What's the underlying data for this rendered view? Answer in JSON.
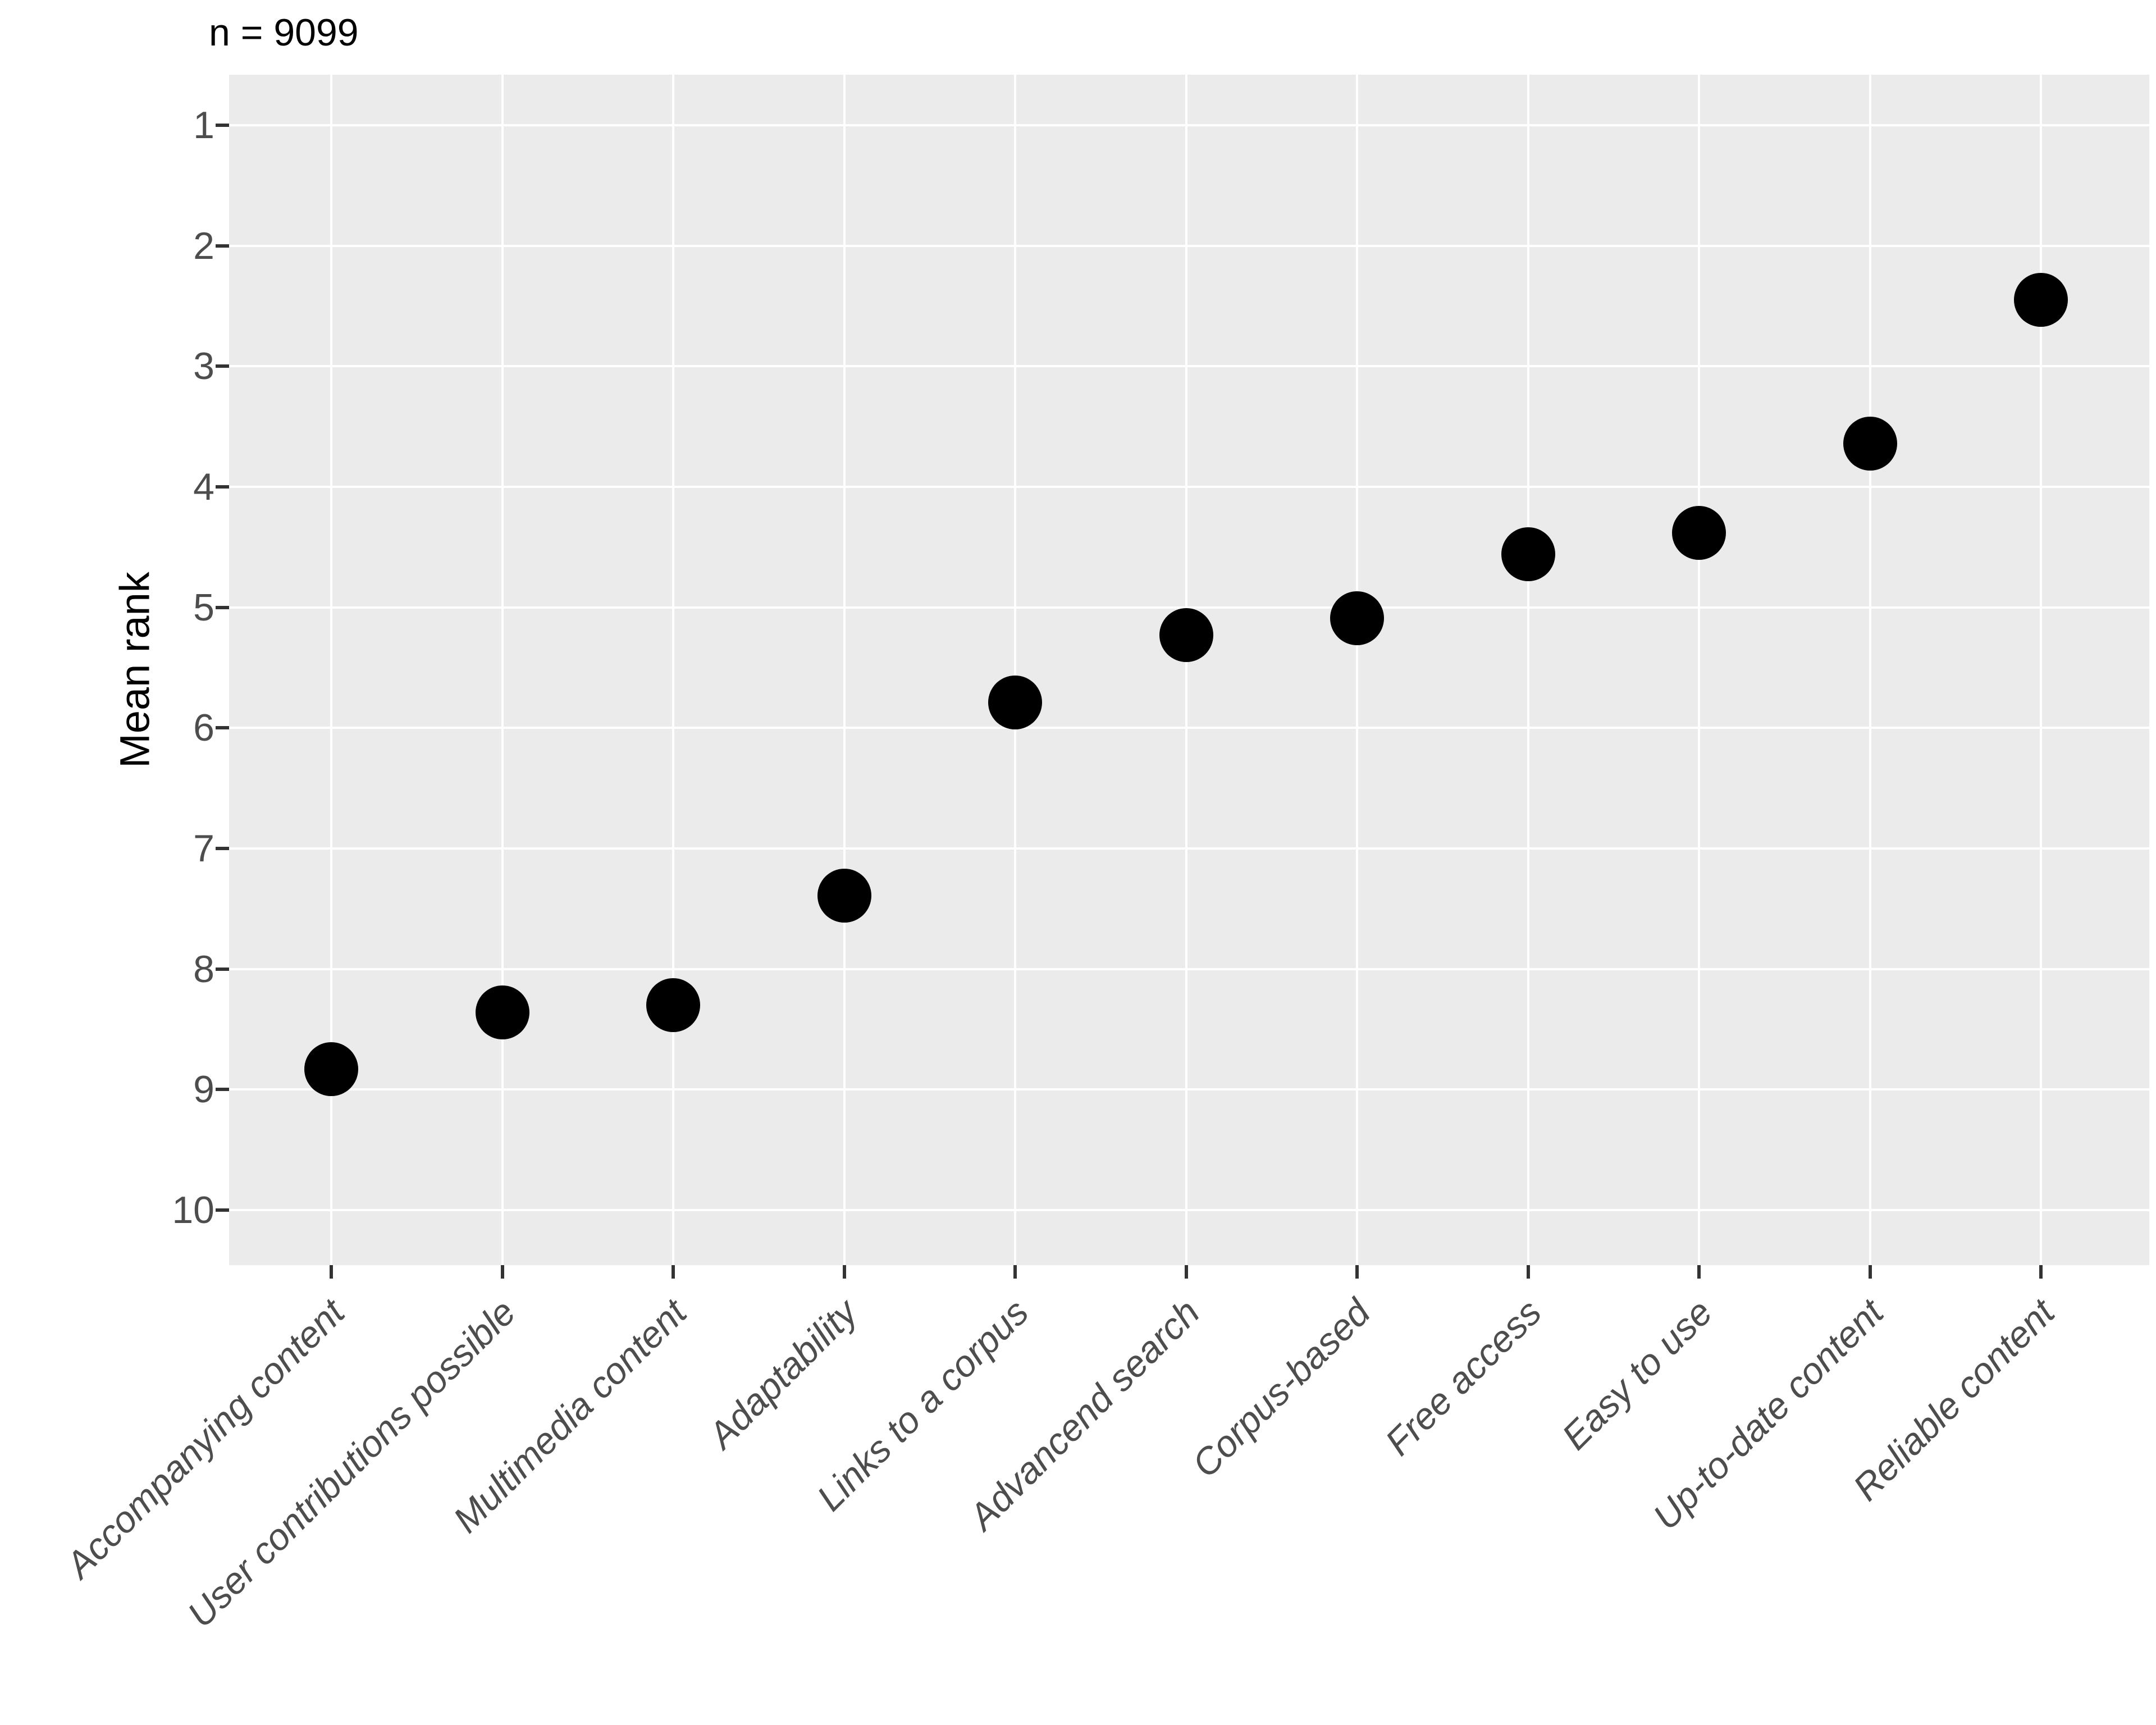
{
  "chart_data": {
    "type": "scatter",
    "title": "n = 9099",
    "xlabel": "",
    "ylabel": "Mean rank",
    "categories": [
      "Accompanying content",
      "User contributions possible",
      "Multimedia content",
      "Adaptability",
      "Links to a corpus",
      "Advancend search",
      "Corpus-based",
      "Free access",
      "Easy to use",
      "Up-to-date content",
      "Reliable content"
    ],
    "values": [
      8.83,
      8.36,
      8.3,
      7.39,
      5.79,
      5.23,
      5.09,
      4.56,
      4.38,
      3.64,
      2.45
    ],
    "y_ticks": [
      1,
      2,
      3,
      4,
      5,
      6,
      7,
      8,
      9,
      10
    ],
    "y_axis_reversed": true,
    "ylim": [
      0.55,
      10.45
    ],
    "grid": "major gridlines only, white on grey panel",
    "legend": "none",
    "colors": {
      "point": "#000000",
      "panel_background": "#EBEBEB",
      "gridline": "#FFFFFF",
      "tick_label": "#4D4D4D",
      "tick_mark": "#333333",
      "title": "#000000",
      "axis_title": "#000000",
      "figure_background": "#FFFFFF"
    }
  }
}
